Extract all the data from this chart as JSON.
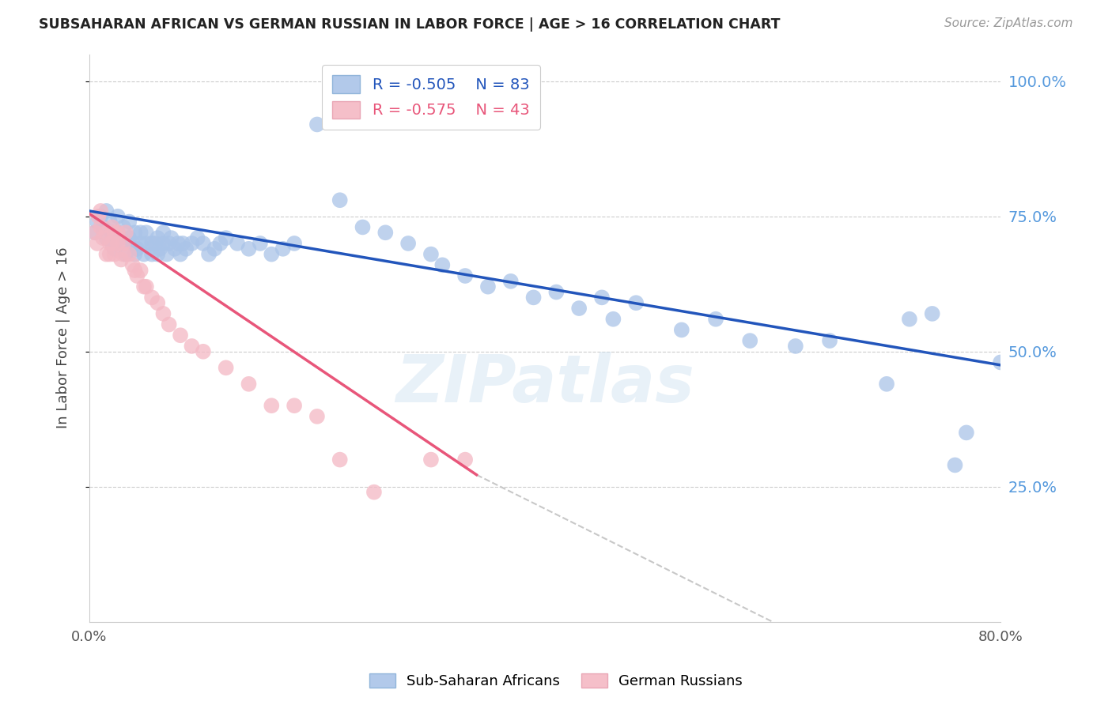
{
  "title": "SUBSAHARAN AFRICAN VS GERMAN RUSSIAN IN LABOR FORCE | AGE > 16 CORRELATION CHART",
  "source": "Source: ZipAtlas.com",
  "ylabel": "In Labor Force | Age > 16",
  "xlim": [
    0.0,
    0.8
  ],
  "ylim": [
    0.0,
    1.05
  ],
  "yticks": [
    0.25,
    0.5,
    0.75,
    1.0
  ],
  "ytick_labels": [
    "25.0%",
    "50.0%",
    "75.0%",
    "100.0%"
  ],
  "xticks": [
    0.0,
    0.1,
    0.2,
    0.3,
    0.4,
    0.5,
    0.6,
    0.7,
    0.8
  ],
  "xtick_labels": [
    "0.0%",
    "",
    "",
    "",
    "",
    "",
    "",
    "",
    "80.0%"
  ],
  "blue_color": "#aac4e8",
  "pink_color": "#f4b8c4",
  "blue_line_color": "#2255bb",
  "pink_line_color": "#e8567a",
  "dashed_line_color": "#c8c8c8",
  "background_color": "#ffffff",
  "grid_color": "#cccccc",
  "label_color": "#5599dd",
  "r_blue": -0.505,
  "n_blue": 83,
  "r_pink": -0.575,
  "n_pink": 43,
  "legend_label_blue": "Sub-Saharan Africans",
  "legend_label_pink": "German Russians",
  "watermark": "ZIPatlas",
  "blue_scatter_x": [
    0.005,
    0.007,
    0.01,
    0.012,
    0.015,
    0.015,
    0.018,
    0.02,
    0.02,
    0.022,
    0.025,
    0.025,
    0.028,
    0.03,
    0.03,
    0.032,
    0.035,
    0.035,
    0.038,
    0.04,
    0.04,
    0.042,
    0.045,
    0.045,
    0.048,
    0.05,
    0.05,
    0.055,
    0.055,
    0.058,
    0.06,
    0.06,
    0.062,
    0.065,
    0.065,
    0.068,
    0.07,
    0.072,
    0.075,
    0.078,
    0.08,
    0.082,
    0.085,
    0.09,
    0.095,
    0.1,
    0.105,
    0.11,
    0.115,
    0.12,
    0.13,
    0.14,
    0.15,
    0.16,
    0.17,
    0.18,
    0.2,
    0.22,
    0.24,
    0.26,
    0.28,
    0.3,
    0.31,
    0.33,
    0.35,
    0.37,
    0.39,
    0.41,
    0.43,
    0.45,
    0.46,
    0.48,
    0.52,
    0.55,
    0.58,
    0.62,
    0.65,
    0.7,
    0.72,
    0.74,
    0.76,
    0.77,
    0.8
  ],
  "blue_scatter_y": [
    0.72,
    0.74,
    0.75,
    0.73,
    0.76,
    0.71,
    0.74,
    0.7,
    0.72,
    0.69,
    0.72,
    0.75,
    0.71,
    0.7,
    0.73,
    0.68,
    0.71,
    0.74,
    0.7,
    0.68,
    0.72,
    0.69,
    0.72,
    0.7,
    0.68,
    0.7,
    0.72,
    0.7,
    0.68,
    0.7,
    0.68,
    0.71,
    0.69,
    0.7,
    0.72,
    0.68,
    0.7,
    0.71,
    0.69,
    0.7,
    0.68,
    0.7,
    0.69,
    0.7,
    0.71,
    0.7,
    0.68,
    0.69,
    0.7,
    0.71,
    0.7,
    0.69,
    0.7,
    0.68,
    0.69,
    0.7,
    0.92,
    0.78,
    0.73,
    0.72,
    0.7,
    0.68,
    0.66,
    0.64,
    0.62,
    0.63,
    0.6,
    0.61,
    0.58,
    0.6,
    0.56,
    0.59,
    0.54,
    0.56,
    0.52,
    0.51,
    0.52,
    0.44,
    0.56,
    0.57,
    0.29,
    0.35,
    0.48
  ],
  "pink_scatter_x": [
    0.005,
    0.007,
    0.008,
    0.01,
    0.01,
    0.012,
    0.015,
    0.015,
    0.018,
    0.018,
    0.02,
    0.02,
    0.022,
    0.022,
    0.025,
    0.025,
    0.028,
    0.03,
    0.03,
    0.032,
    0.035,
    0.038,
    0.04,
    0.042,
    0.045,
    0.048,
    0.05,
    0.055,
    0.06,
    0.065,
    0.07,
    0.08,
    0.09,
    0.1,
    0.12,
    0.14,
    0.16,
    0.18,
    0.2,
    0.22,
    0.25,
    0.3,
    0.33
  ],
  "pink_scatter_y": [
    0.72,
    0.7,
    0.75,
    0.73,
    0.76,
    0.71,
    0.68,
    0.72,
    0.7,
    0.68,
    0.73,
    0.7,
    0.72,
    0.68,
    0.7,
    0.72,
    0.67,
    0.7,
    0.68,
    0.72,
    0.68,
    0.66,
    0.65,
    0.64,
    0.65,
    0.62,
    0.62,
    0.6,
    0.59,
    0.57,
    0.55,
    0.53,
    0.51,
    0.5,
    0.47,
    0.44,
    0.4,
    0.4,
    0.38,
    0.3,
    0.24,
    0.3,
    0.3
  ],
  "blue_line_x": [
    0.0,
    0.8
  ],
  "blue_line_y": [
    0.76,
    0.475
  ],
  "pink_line_x": [
    0.0,
    0.34
  ],
  "pink_line_y": [
    0.755,
    0.272
  ],
  "dashed_line_x": [
    0.34,
    0.6
  ],
  "dashed_line_y": [
    0.272,
    0.0
  ]
}
